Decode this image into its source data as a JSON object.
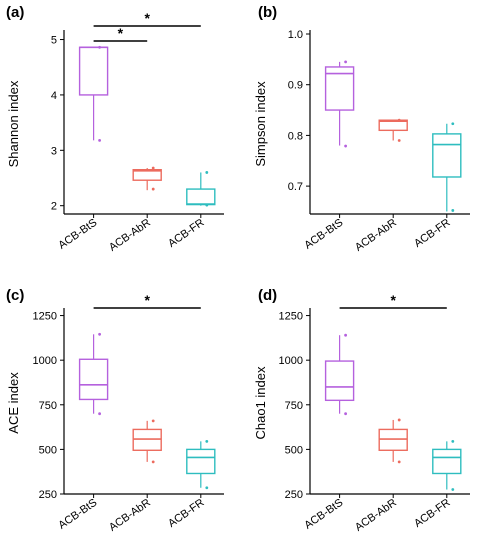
{
  "colors": {
    "ACB-BtS": "#b561de",
    "ACB-AbR": "#ec6b5e",
    "ACB-FR": "#2ebdbf"
  },
  "chart_data": [
    {
      "type": "box",
      "panel": "(a)",
      "ylabel": "Shannon index",
      "ylim": [
        1.85,
        5.1
      ],
      "yticks": [
        2,
        3,
        4,
        5
      ],
      "categories": [
        "ACB-BtS",
        "ACB-AbR",
        "ACB-FR"
      ],
      "boxes": [
        {
          "min": 3.18,
          "q1": 4.0,
          "median": 4.86,
          "q3": 4.86,
          "max": 4.86,
          "points": [
            3.18,
            4.86
          ]
        },
        {
          "min": 2.28,
          "q1": 2.46,
          "median": 2.63,
          "q3": 2.65,
          "max": 2.68,
          "points": [
            2.3,
            2.68
          ]
        },
        {
          "min": 2.0,
          "q1": 2.02,
          "median": 2.03,
          "q3": 2.3,
          "max": 2.6,
          "points": [
            2.01,
            2.6
          ]
        }
      ],
      "significance": [
        {
          "from": 0,
          "to": 1,
          "label": "*"
        },
        {
          "from": 0,
          "to": 2,
          "label": "*"
        }
      ]
    },
    {
      "type": "box",
      "panel": "(b)",
      "ylabel": "Simpson index",
      "ylim": [
        0.645,
        1.0
      ],
      "yticks": [
        0.7,
        0.8,
        0.9,
        1.0
      ],
      "categories": [
        "ACB-BtS",
        "ACB-AbR",
        "ACB-FR"
      ],
      "boxes": [
        {
          "min": 0.78,
          "q1": 0.85,
          "median": 0.922,
          "q3": 0.935,
          "max": 0.945,
          "points": [
            0.779,
            0.945
          ]
        },
        {
          "min": 0.79,
          "q1": 0.81,
          "median": 0.828,
          "q3": 0.83,
          "max": 0.83,
          "points": [
            0.79,
            0.83
          ]
        },
        {
          "min": 0.65,
          "q1": 0.718,
          "median": 0.782,
          "q3": 0.803,
          "max": 0.823,
          "points": [
            0.652,
            0.823
          ]
        }
      ],
      "significance": []
    },
    {
      "type": "box",
      "panel": "(c)",
      "ylabel": "ACE index",
      "ylim": [
        250,
        1270
      ],
      "yticks": [
        250,
        500,
        750,
        1000,
        1250
      ],
      "categories": [
        "ACB-BtS",
        "ACB-AbR",
        "ACB-FR"
      ],
      "boxes": [
        {
          "min": 700,
          "q1": 780,
          "median": 862,
          "q3": 1005,
          "max": 1145,
          "points": [
            700,
            1145
          ]
        },
        {
          "min": 430,
          "q1": 495,
          "median": 558,
          "q3": 612,
          "max": 660,
          "points": [
            430,
            660
          ]
        },
        {
          "min": 285,
          "q1": 365,
          "median": 455,
          "q3": 500,
          "max": 545,
          "points": [
            285,
            545
          ]
        }
      ],
      "significance": [
        {
          "from": 0,
          "to": 2,
          "label": "*"
        }
      ]
    },
    {
      "type": "box",
      "panel": "(d)",
      "ylabel": "Chao1 index",
      "ylim": [
        250,
        1270
      ],
      "yticks": [
        250,
        500,
        750,
        1000,
        1250
      ],
      "categories": [
        "ACB-BtS",
        "ACB-AbR",
        "ACB-FR"
      ],
      "boxes": [
        {
          "min": 700,
          "q1": 775,
          "median": 850,
          "q3": 995,
          "max": 1140,
          "points": [
            700,
            1140
          ]
        },
        {
          "min": 430,
          "q1": 495,
          "median": 558,
          "q3": 612,
          "max": 665,
          "points": [
            430,
            665
          ]
        },
        {
          "min": 275,
          "q1": 365,
          "median": 455,
          "q3": 500,
          "max": 545,
          "points": [
            275,
            545
          ]
        }
      ],
      "significance": [
        {
          "from": 0,
          "to": 2,
          "label": "*"
        }
      ]
    }
  ]
}
